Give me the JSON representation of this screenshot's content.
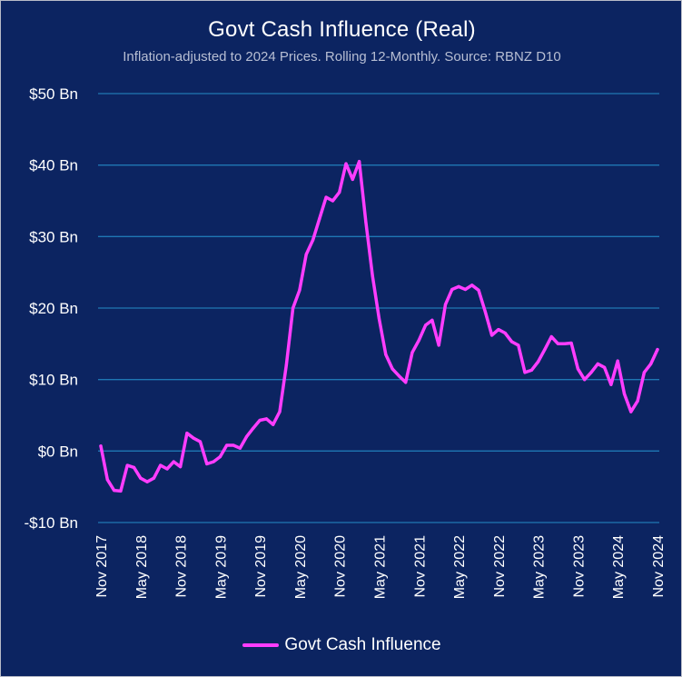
{
  "chart_data": {
    "type": "line",
    "title": "Govt Cash Influence (Real)",
    "subtitle": "Inflation-adjusted to 2024 Prices. Rolling 12-Monthly. Source: RBNZ D10",
    "xlabel": "",
    "ylabel": "",
    "ylim": [
      -10,
      50
    ],
    "y_ticks": [
      {
        "value": 50,
        "label": "$50 Bn"
      },
      {
        "value": 40,
        "label": "$40 Bn"
      },
      {
        "value": 30,
        "label": "$30 Bn"
      },
      {
        "value": 20,
        "label": "$20 Bn"
      },
      {
        "value": 10,
        "label": "$10 Bn"
      },
      {
        "value": 0,
        "label": "$0 Bn"
      },
      {
        "value": -10,
        "label": "-$10 Bn"
      }
    ],
    "x_ticks": [
      "Nov 2017",
      "May 2018",
      "Nov 2018",
      "May 2019",
      "Nov 2019",
      "May 2020",
      "Nov 2020",
      "May 2021",
      "Nov 2021",
      "May 2022",
      "Nov 2022",
      "May 2023",
      "Nov 2023",
      "May 2024",
      "Nov 2024"
    ],
    "grid": true,
    "legend_position": "bottom",
    "colors": {
      "background": "#0c2461",
      "grid": "#1f77b4",
      "line": "#ff3dff"
    },
    "series": [
      {
        "name": "Govt Cash Influence",
        "color": "#ff3dff",
        "x": [
          "2017-11",
          "2017-12",
          "2018-01",
          "2018-02",
          "2018-03",
          "2018-04",
          "2018-05",
          "2018-06",
          "2018-07",
          "2018-08",
          "2018-09",
          "2018-10",
          "2018-11",
          "2018-12",
          "2019-01",
          "2019-02",
          "2019-03",
          "2019-04",
          "2019-05",
          "2019-06",
          "2019-07",
          "2019-08",
          "2019-09",
          "2019-10",
          "2019-11",
          "2019-12",
          "2020-01",
          "2020-02",
          "2020-03",
          "2020-04",
          "2020-05",
          "2020-06",
          "2020-07",
          "2020-08",
          "2020-09",
          "2020-10",
          "2020-11",
          "2020-12",
          "2021-01",
          "2021-02",
          "2021-03",
          "2021-04",
          "2021-05",
          "2021-06",
          "2021-07",
          "2021-08",
          "2021-09",
          "2021-10",
          "2021-11",
          "2021-12",
          "2022-01",
          "2022-02",
          "2022-03",
          "2022-04",
          "2022-05",
          "2022-06",
          "2022-07",
          "2022-08",
          "2022-09",
          "2022-10",
          "2022-11",
          "2022-12",
          "2023-01",
          "2023-02",
          "2023-03",
          "2023-04",
          "2023-05",
          "2023-06",
          "2023-07",
          "2023-08",
          "2023-09",
          "2023-10",
          "2023-11",
          "2023-12",
          "2024-01",
          "2024-02",
          "2024-03",
          "2024-04",
          "2024-05",
          "2024-06",
          "2024-07",
          "2024-08",
          "2024-09",
          "2024-10",
          "2024-11"
        ],
        "values": [
          0.7,
          -4.0,
          -5.5,
          -5.6,
          -2.0,
          -2.3,
          -3.8,
          -4.3,
          -3.8,
          -2.0,
          -2.5,
          -1.5,
          -2.2,
          2.5,
          1.8,
          1.3,
          -1.8,
          -1.5,
          -0.8,
          0.8,
          0.8,
          0.4,
          2.0,
          3.2,
          4.3,
          4.5,
          3.7,
          5.5,
          12.0,
          20.0,
          22.5,
          27.5,
          29.5,
          32.5,
          35.5,
          35.0,
          36.2,
          40.2,
          38.0,
          40.5,
          32.0,
          24.5,
          18.5,
          13.5,
          11.5,
          10.5,
          9.6,
          13.8,
          15.5,
          17.6,
          18.3,
          14.8,
          20.5,
          22.6,
          23.0,
          22.6,
          23.2,
          22.5,
          19.5,
          16.2,
          17.0,
          16.5,
          15.3,
          14.8,
          11.0,
          11.3,
          12.5,
          14.2,
          16.0,
          15.0,
          15.0,
          15.1,
          11.5,
          10.0,
          11.0,
          12.2,
          11.7,
          9.3,
          12.6,
          8.0,
          5.5,
          7.0,
          11.0,
          12.2,
          14.2
        ]
      }
    ]
  }
}
